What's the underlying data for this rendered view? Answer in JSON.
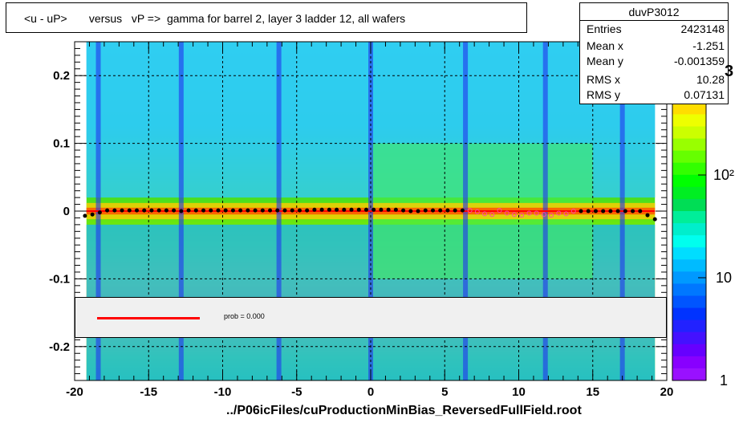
{
  "chart_data": {
    "type": "heatmap",
    "title": "<u - uP>       versus   vP =>  gamma for barrel 2, layer 3 ladder 12, all wafers",
    "xlabel": "../P06icFiles/cuProductionMinBias_ReversedFullField.root",
    "ylabel": "",
    "xlim": [
      -20,
      20
    ],
    "ylim": [
      -0.25,
      0.25
    ],
    "x_ticks": [
      "-20",
      "-15",
      "-10",
      "-5",
      "0",
      "5",
      "10",
      "15",
      "20"
    ],
    "y_ticks": [
      "0.2",
      "0.1",
      "0",
      "-0.1",
      "-0.2"
    ],
    "z_ticks": [
      "1",
      "10",
      "10²"
    ],
    "z_scale": "log",
    "grid": true,
    "stats": {
      "name": "duvP3012",
      "rows": [
        {
          "label": "Entries",
          "value": "2423148"
        },
        {
          "label": "Mean x",
          "value": "-1.251"
        },
        {
          "label": "Mean y",
          "value": "-0.001359"
        },
        {
          "label": "RMS x",
          "value": "10.28"
        },
        {
          "label": "RMS y",
          "value": "0.07131"
        }
      ]
    },
    "fit": {
      "label": "prob = 0.000",
      "color": "#ff0000",
      "y": 0.0
    },
    "profile_points": {
      "x": [
        -19.3,
        -18.8,
        -18.3,
        -17.8,
        -17.3,
        -16.8,
        -16.3,
        -15.8,
        -15.3,
        -14.8,
        -14.3,
        -13.8,
        -13.3,
        -12.8,
        -12.3,
        -11.8,
        -11.3,
        -10.8,
        -10.3,
        -9.8,
        -9.3,
        -8.8,
        -8.3,
        -7.8,
        -7.3,
        -6.8,
        -6.3,
        -5.8,
        -5.3,
        -4.8,
        -4.3,
        -3.8,
        -3.3,
        -2.8,
        -2.3,
        -1.8,
        -1.3,
        -0.8,
        -0.3,
        0.2,
        0.7,
        1.2,
        1.7,
        2.2,
        2.7,
        3.2,
        3.7,
        4.2,
        4.7,
        5.2,
        5.7,
        6.2,
        6.7,
        7.2,
        7.7,
        8.2,
        8.7,
        9.2,
        9.7,
        10.2,
        10.7,
        11.2,
        11.7,
        12.2,
        12.7,
        13.2,
        13.7,
        14.2,
        14.7,
        15.2,
        15.7,
        16.2,
        16.7,
        17.2,
        17.7,
        18.2,
        18.7,
        19.2
      ],
      "y": [
        -0.007,
        -0.005,
        -0.002,
        0.001,
        0.001,
        0.001,
        0.001,
        0.001,
        0.001,
        0.001,
        0.001,
        0.001,
        0.001,
        0.0,
        0.001,
        0.001,
        0.001,
        0.001,
        0.001,
        0.001,
        0.001,
        0.001,
        0.001,
        0.001,
        0.001,
        0.001,
        0.001,
        0.001,
        0.001,
        0.001,
        0.001,
        0.002,
        0.002,
        0.002,
        0.002,
        0.002,
        0.002,
        0.002,
        0.002,
        0.002,
        0.002,
        0.002,
        0.002,
        0.001,
        0.0,
        0.0,
        0.001,
        0.001,
        0.001,
        0.001,
        0.001,
        0.001,
        0.001,
        -0.001,
        -0.004,
        -0.005,
        0.001,
        -0.003,
        -0.005,
        -0.006,
        -0.003,
        -0.003,
        -0.005,
        -0.006,
        -0.003,
        -0.004,
        0.0,
        0.0,
        0.0,
        0.0,
        0.0,
        0.0,
        0.0,
        0.0,
        0.0,
        0.0,
        -0.006,
        -0.012
      ]
    },
    "colors": {
      "fit": "#ff0000",
      "legend_bg": "#f0f0f0",
      "axis": "#000000"
    }
  }
}
